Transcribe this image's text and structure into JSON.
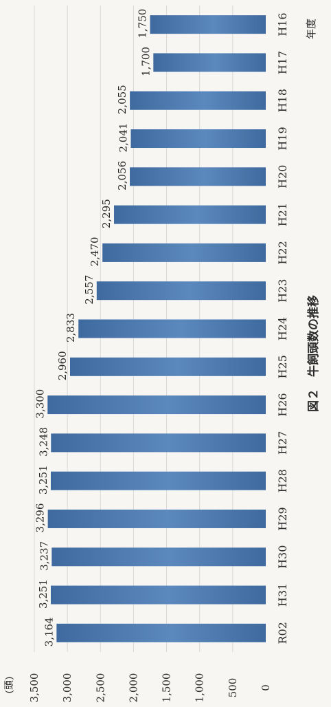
{
  "chart_data": {
    "type": "bar",
    "orientation": "rotated-90-ccw",
    "title": "図２　牛飼頭数の推移",
    "unit_label": "(頭)",
    "x_axis_label": "年度",
    "categories": [
      "H16",
      "H17",
      "H18",
      "H19",
      "H20",
      "H21",
      "H22",
      "H23",
      "H24",
      "H25",
      "H26",
      "H27",
      "H28",
      "H29",
      "H30",
      "H31",
      "R02"
    ],
    "values": [
      1750,
      1700,
      2055,
      2041,
      2056,
      2295,
      2470,
      2557,
      2833,
      2960,
      3300,
      3248,
      3251,
      3296,
      3237,
      3251,
      3164
    ],
    "value_labels": [
      "1,750",
      "1,700",
      "2,055",
      "2,041",
      "2,056",
      "2,295",
      "2,470",
      "2,557",
      "2,833",
      "2,960",
      "3,300",
      "3,248",
      "3,251",
      "3,296",
      "3,237",
      "3,251",
      "3,164"
    ],
    "ylim": [
      0,
      3500
    ],
    "y_ticks": [
      0,
      500,
      1000,
      1500,
      2000,
      2500,
      3000,
      3500
    ],
    "y_tick_labels": [
      "0",
      "500",
      "1,000",
      "1,500",
      "2,000",
      "2,500",
      "3,000",
      "3,500"
    ],
    "grid": true,
    "colors": {
      "bar": "#5b88bd",
      "bar_dark": "#3f6a9f",
      "grid": "#d8d8d8",
      "text": "#2b2b2b"
    }
  }
}
